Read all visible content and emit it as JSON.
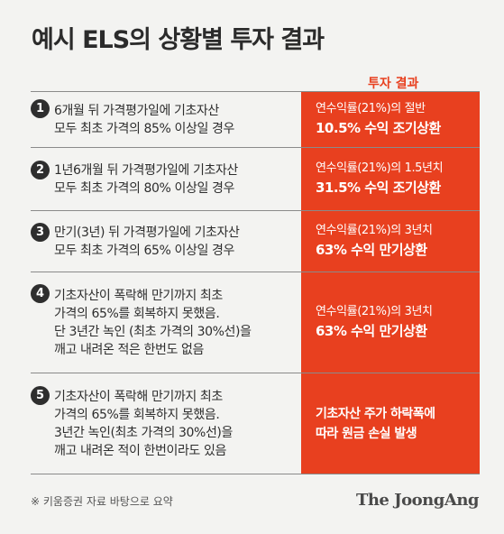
{
  "title": "예시 ELS의 상황별 투자 결과",
  "result_header": "투자 결과",
  "rows": [
    {
      "num": "1",
      "condition": [
        "6개월 뒤 가격평가일에 기초자산",
        "모두 최초 가격의 85% 이상일 경우"
      ],
      "result": [
        "연수익률(21%)의 절반",
        "10.5% 수익 조기상환"
      ]
    },
    {
      "num": "2",
      "condition": [
        "1년6개월 뒤 가격평가일에 기초자산",
        "모두 최초 가격의 80% 이상일 경우"
      ],
      "result": [
        "연수익률(21%)의 1.5년치",
        "31.5% 수익 조기상환"
      ]
    },
    {
      "num": "3",
      "condition": [
        "만기(3년) 뒤 가격평가일에 기초자산",
        "모두 최초 가격의 65% 이상일 경우"
      ],
      "result": [
        "연수익률(21%)의 3년치",
        "63% 수익 만기상환"
      ]
    },
    {
      "num": "4",
      "condition": [
        "기초자산이 폭락해 만기까지 최초",
        "가격의 65%를 회복하지 못했음.",
        "단 3년간 녹인 (최초 가격의 30%선)을",
        "깨고 내려온 적은 한번도 없음"
      ],
      "result": [
        "연수익률(21%)의 3년치",
        "63% 수익 만기상환"
      ]
    },
    {
      "num": "5",
      "condition": [
        "기초자산이 폭락해 만기까지 최초",
        "가격의 65%를 회복하지 못했음.",
        "3년간 녹인(최초 가격의 30%선)을",
        "깨고 내려온 적이 한번이라도 있음"
      ],
      "result": [
        "기초자산 주가 하락폭에",
        "따라 원금 손실 발생"
      ]
    }
  ],
  "footnote": "※ 키움증권 자료 바탕으로 요약",
  "logo": "The JoongAng"
}
